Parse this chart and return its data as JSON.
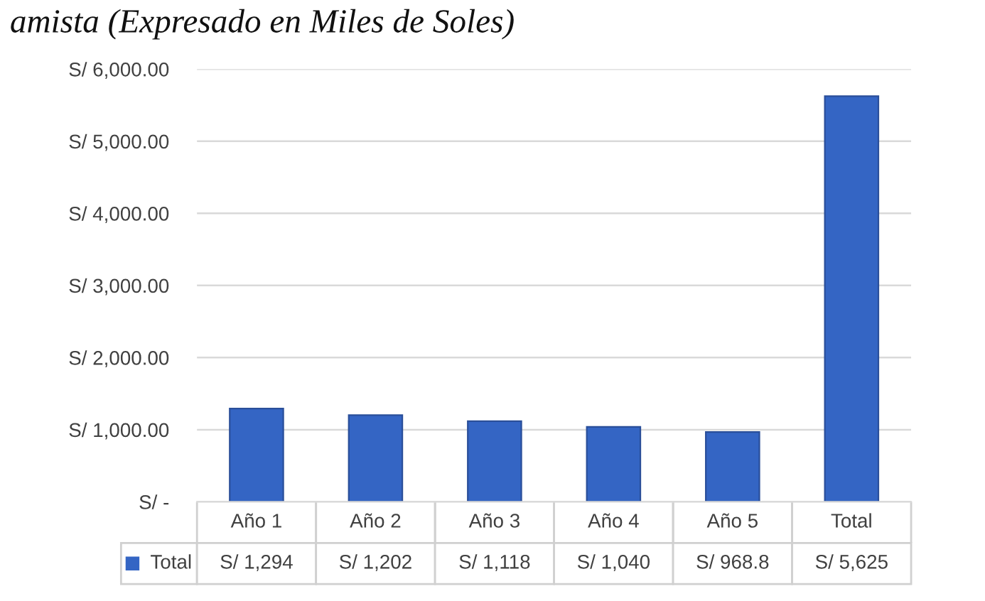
{
  "chart_data": {
    "type": "bar",
    "title": "amista (Expresado en Miles de Soles)",
    "categories": [
      "Año 1",
      "Año 2",
      "Año 3",
      "Año 4",
      "Año 5",
      "Total"
    ],
    "series": [
      {
        "name": "Total",
        "color": "#3465c4",
        "values": [
          1294,
          1202,
          1118,
          1040,
          968.8,
          5625
        ],
        "value_labels": [
          "S/ 1,294",
          "S/ 1,202",
          "S/ 1,118",
          "S/ 1,040",
          "S/ 968.8",
          "S/ 5,625"
        ]
      }
    ],
    "ylim": [
      0,
      6000
    ],
    "yticks": [
      {
        "value": 0,
        "label": "S/ -"
      },
      {
        "value": 1000,
        "label": "S/ 1,000.00"
      },
      {
        "value": 2000,
        "label": "S/ 2,000.00"
      },
      {
        "value": 3000,
        "label": "S/ 3,000.00"
      },
      {
        "value": 4000,
        "label": "S/ 4,000.00"
      },
      {
        "value": 5000,
        "label": "S/ 5,000.00"
      },
      {
        "value": 6000,
        "label": "S/ 6,000.00"
      }
    ],
    "grid": "y",
    "tick_labels": "y"
  }
}
